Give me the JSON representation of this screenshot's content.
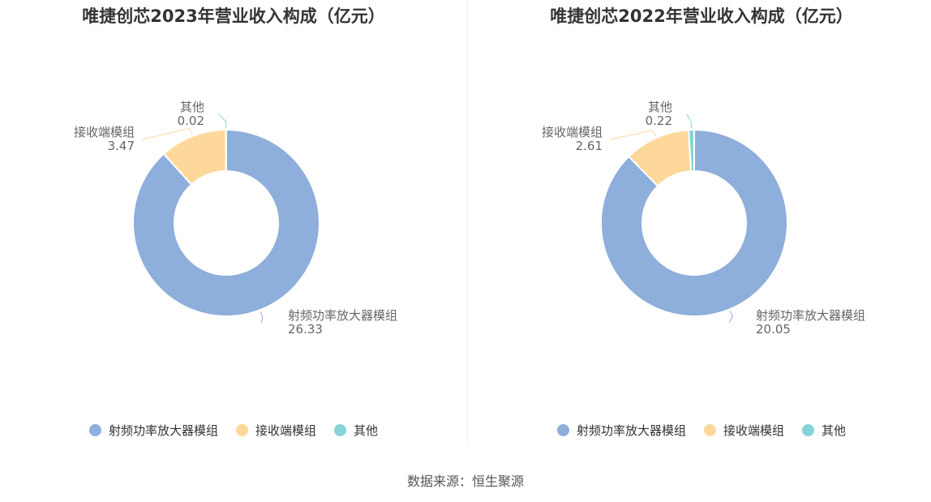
{
  "colors": {
    "series": [
      "#8eaedb",
      "#fdd89a",
      "#85d4d9"
    ],
    "title": "#333333",
    "label": "#666666"
  },
  "source": "数据来源：恒生聚源",
  "chart_data": [
    {
      "type": "pie",
      "donut": true,
      "title": "唯捷创芯2023年营业收入构成（亿元）",
      "categories": [
        "射频功率放大器模组",
        "接收端模组",
        "其他"
      ],
      "values": [
        26.33,
        3.47,
        0.02
      ],
      "value_labels": [
        "26.33",
        "3.47",
        "0.02"
      ],
      "legend": "bottom"
    },
    {
      "type": "pie",
      "donut": true,
      "title": "唯捷创芯2022年营业收入构成（亿元）",
      "categories": [
        "射频功率放大器模组",
        "接收端模组",
        "其他"
      ],
      "values": [
        20.05,
        2.61,
        0.22
      ],
      "value_labels": [
        "20.05",
        "2.61",
        "0.22"
      ],
      "legend": "bottom"
    }
  ]
}
